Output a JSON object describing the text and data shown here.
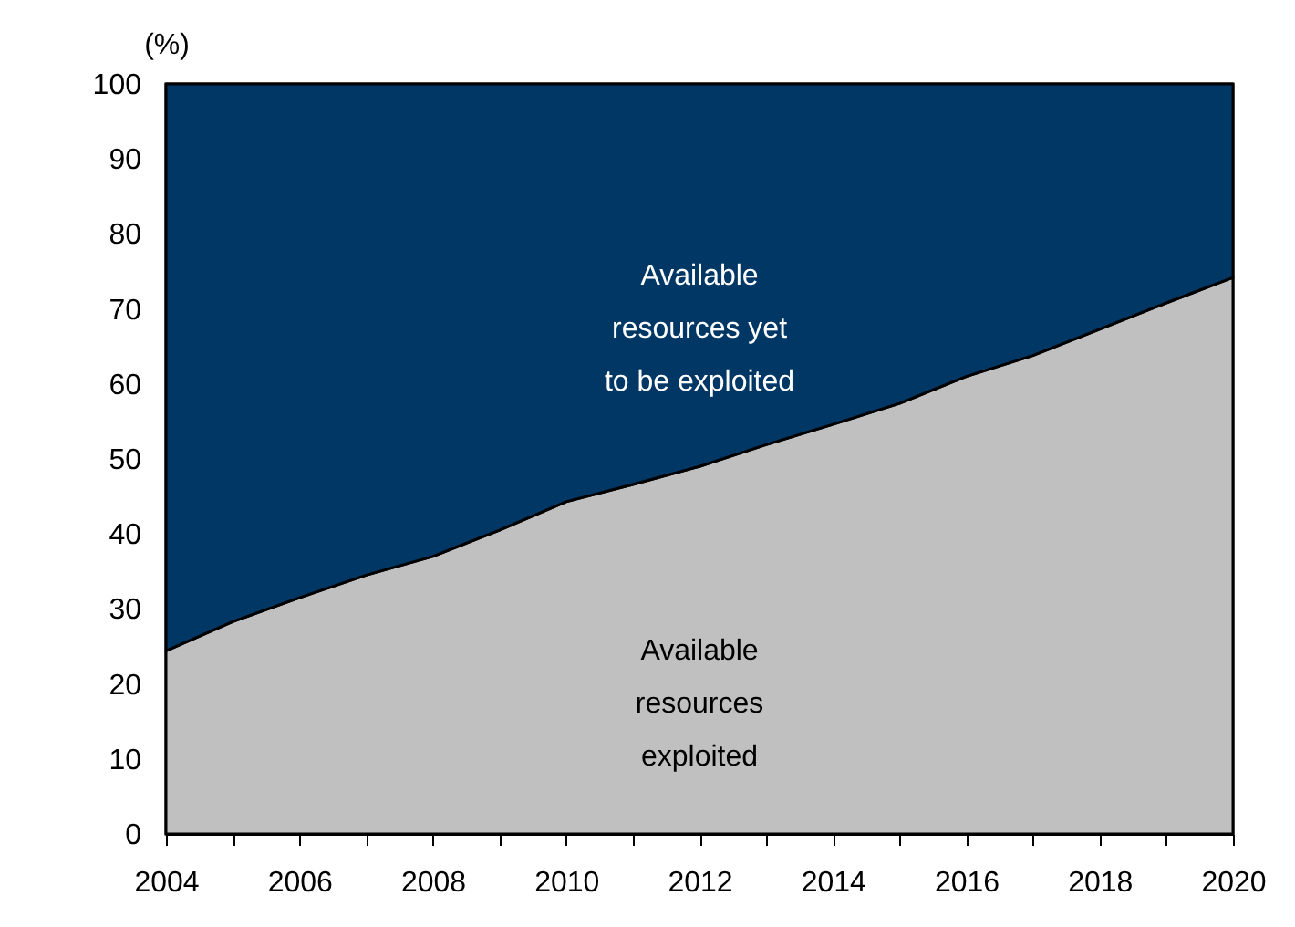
{
  "chart_data": {
    "type": "area",
    "stacked": true,
    "ylabel": "(%)",
    "x": [
      2004,
      2005,
      2006,
      2007,
      2008,
      2009,
      2010,
      2011,
      2012,
      2013,
      2014,
      2015,
      2016,
      2017,
      2018,
      2019,
      2020
    ],
    "series": [
      {
        "name": "Available resources exploited",
        "color": "#c0c0c0",
        "values": [
          24.4,
          28.3,
          31.5,
          34.5,
          37,
          40.5,
          44.3,
          46.6,
          49,
          51.9,
          54.6,
          57.4,
          61,
          63.8,
          67.3,
          70.8,
          74.2
        ]
      },
      {
        "name": "Available resources yet to be exploited",
        "color": "#003764",
        "values": [
          75.6,
          71.7,
          68.5,
          65.5,
          63,
          59.5,
          55.7,
          53.4,
          51,
          48.1,
          45.4,
          42.6,
          39,
          36.2,
          32.7,
          29.2,
          25.8
        ]
      }
    ],
    "xlim": [
      2004,
      2020
    ],
    "xticks": [
      2004,
      {
        "value": 2005,
        "label": null
      },
      2006,
      {
        "value": 2007,
        "label": null
      },
      2008,
      {
        "value": 2009,
        "label": null
      },
      2010,
      {
        "value": 2011,
        "label": null
      },
      2012,
      {
        "value": 2013,
        "label": null
      },
      2014,
      {
        "value": 2015,
        "label": null
      },
      2016,
      {
        "value": 2017,
        "label": null
      },
      2018,
      {
        "value": 2019,
        "label": null
      },
      2020
    ],
    "ylim": [
      0,
      100
    ],
    "yticks": [
      0,
      10,
      20,
      30,
      40,
      50,
      60,
      70,
      80,
      90,
      100
    ],
    "grid": false,
    "legend": false
  }
}
